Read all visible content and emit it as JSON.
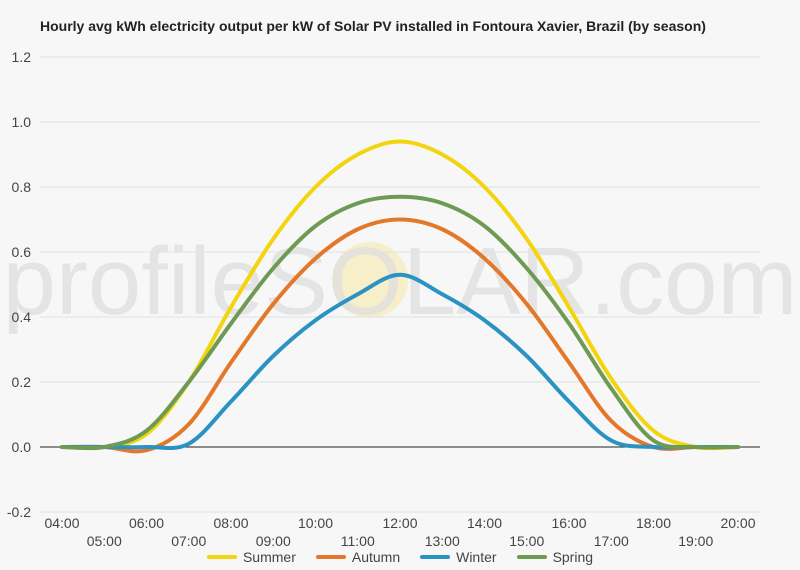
{
  "chart_data": {
    "type": "line",
    "title": "Hourly avg kWh electricity output per kW of Solar PV installed in Fontoura Xavier, Brazil (by season)",
    "xlabel": "",
    "ylabel": "",
    "ylim": [
      -0.2,
      1.2
    ],
    "yticks": [
      -0.2,
      0.0,
      0.2,
      0.4,
      0.6,
      0.8,
      1.0,
      1.2
    ],
    "ytick_labels": [
      "-0.2",
      "0.0",
      "0.2",
      "0.4",
      "0.6",
      "0.8",
      "1.0",
      "1.2"
    ],
    "x": [
      "04:00",
      "05:00",
      "06:00",
      "07:00",
      "08:00",
      "09:00",
      "10:00",
      "11:00",
      "12:00",
      "13:00",
      "14:00",
      "15:00",
      "16:00",
      "17:00",
      "18:00",
      "19:00",
      "20:00"
    ],
    "grid": true,
    "legend_position": "bottom",
    "watermark": "profileSOLAR.com",
    "series": [
      {
        "name": "Summer",
        "color": "#f2d50f",
        "values": [
          0.0,
          0.0,
          0.04,
          0.2,
          0.43,
          0.64,
          0.8,
          0.9,
          0.94,
          0.9,
          0.8,
          0.64,
          0.43,
          0.21,
          0.05,
          0.0,
          0.0
        ]
      },
      {
        "name": "Autumn",
        "color": "#e3782a",
        "values": [
          0.0,
          0.0,
          -0.01,
          0.07,
          0.26,
          0.44,
          0.58,
          0.67,
          0.7,
          0.67,
          0.58,
          0.44,
          0.26,
          0.08,
          0.0,
          0.0,
          0.0
        ]
      },
      {
        "name": "Winter",
        "color": "#2a93c4",
        "values": [
          0.0,
          0.0,
          0.0,
          0.01,
          0.14,
          0.28,
          0.39,
          0.47,
          0.53,
          0.47,
          0.39,
          0.28,
          0.14,
          0.02,
          0.0,
          0.0,
          0.0
        ]
      },
      {
        "name": "Spring",
        "color": "#6e9a53",
        "values": [
          0.0,
          0.0,
          0.05,
          0.2,
          0.38,
          0.55,
          0.68,
          0.75,
          0.77,
          0.75,
          0.68,
          0.55,
          0.38,
          0.18,
          0.02,
          0.0,
          0.0
        ]
      }
    ]
  }
}
